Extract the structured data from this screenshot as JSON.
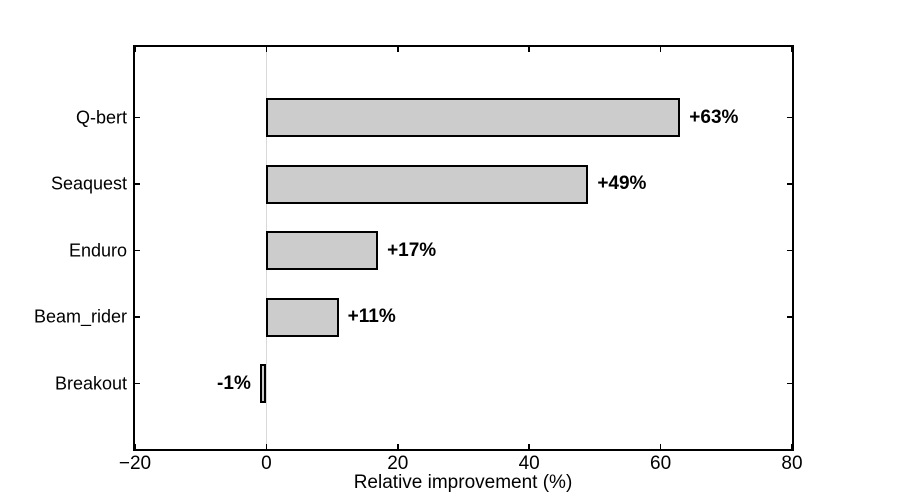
{
  "chart_data": {
    "type": "bar",
    "orientation": "horizontal",
    "title": "",
    "xlabel": "Relative improvement (%)",
    "ylabel": "",
    "categories": [
      "Q-bert",
      "Seaquest",
      "Enduro",
      "Beam_rider",
      "Breakout"
    ],
    "values": [
      63,
      49,
      17,
      11,
      -1
    ],
    "value_labels": [
      "+63%",
      "+49%",
      "+17%",
      "+11%",
      "-1%"
    ],
    "xlim": [
      -20,
      80
    ],
    "xticks": [
      -20,
      0,
      20,
      40,
      60,
      80
    ],
    "xtick_labels": [
      "−20",
      "0",
      "20",
      "40",
      "60",
      "80"
    ],
    "grid": false,
    "zero_line": true,
    "legend": "none",
    "colors": {
      "bar_fill": "#cccccc",
      "bar_edge": "#000000",
      "axis": "#000000",
      "zero_line": "#d8d8d8",
      "text": "#000000",
      "background": "#ffffff"
    }
  }
}
